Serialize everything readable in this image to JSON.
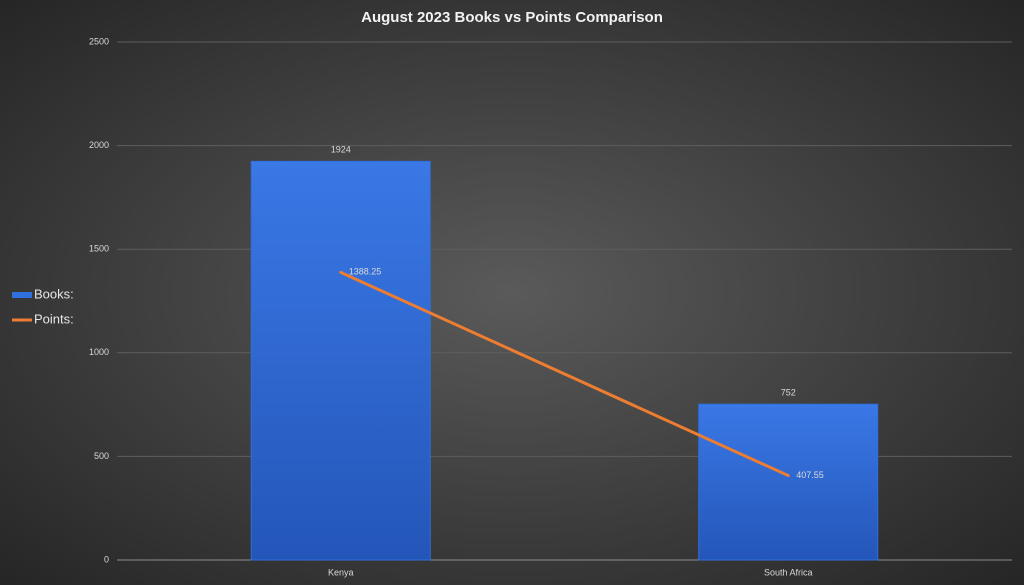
{
  "chart_data": {
    "type": "bar",
    "title": "August 2023 Books vs Points Comparison",
    "categories": [
      "Kenya",
      "South Africa"
    ],
    "series": [
      {
        "name": "Books:",
        "type": "bar",
        "color": "#2f6fde",
        "values": [
          1924,
          752
        ]
      },
      {
        "name": "Points:",
        "type": "line",
        "color": "#ed7d31",
        "values": [
          1388.25,
          407.55
        ]
      }
    ],
    "ylim": [
      0,
      2500
    ],
    "yticks": [
      0,
      500,
      1000,
      1500,
      2000,
      2500
    ],
    "grid": true,
    "legend": "left"
  }
}
